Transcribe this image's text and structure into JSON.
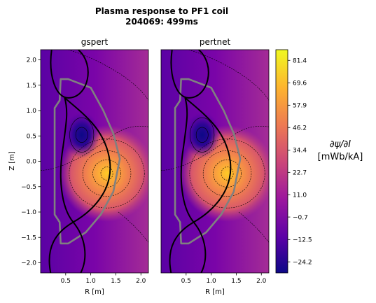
{
  "figure": {
    "title_line1": "Plasma response to PF1 coil",
    "title_line2": "204069: 499ms"
  },
  "chart_data": [
    {
      "type": "heatmap",
      "title": "gspert",
      "xlabel": "R [m]",
      "ylabel": "Z [m]",
      "xlim": [
        0.0,
        2.15
      ],
      "ylim": [
        -2.2,
        2.2
      ],
      "xticks": [
        "0.5",
        "1.0",
        "1.5",
        "2.0"
      ],
      "yticks": [
        "2.0",
        "1.5",
        "1.0",
        "0.5",
        "0.0",
        "−0.5",
        "−1.0",
        "−1.5",
        "−2.0"
      ],
      "extrema": [
        {
          "kind": "min",
          "R": 0.82,
          "Z": 0.52,
          "value": -24.2
        },
        {
          "kind": "max",
          "R": 1.32,
          "Z": -0.24,
          "value": 81.4
        }
      ]
    },
    {
      "type": "heatmap",
      "title": "pertnet",
      "xlabel": "R [m]",
      "ylabel": "",
      "xlim": [
        0.0,
        2.15
      ],
      "ylim": [
        -2.2,
        2.2
      ],
      "xticks": [
        "0.5",
        "1.0",
        "1.5",
        "2.0"
      ],
      "extrema": [
        {
          "kind": "min",
          "R": 0.82,
          "Z": 0.52,
          "value": -24.2
        },
        {
          "kind": "max",
          "R": 1.32,
          "Z": -0.24,
          "value": 81.4
        }
      ]
    }
  ],
  "colorbar": {
    "label_line1": "∂ψ/∂I",
    "label_line2": "[mWb/kA]",
    "range": [
      -30,
      87
    ],
    "ticks": [
      "81.4",
      "69.6",
      "57.9",
      "46.2",
      "34.4",
      "22.7",
      "11.0",
      "−0.7",
      "−12.5",
      "−24.2"
    ],
    "tick_values": [
      81.4,
      69.6,
      57.9,
      46.2,
      34.4,
      22.7,
      11.0,
      -0.7,
      -12.5,
      -24.2
    ],
    "colors": [
      "#0d0887",
      "#5c01a6",
      "#9c179e",
      "#cc4778",
      "#ed7953",
      "#fdb42f",
      "#f0f921"
    ]
  },
  "overlays": {
    "vessel_color": "#808080",
    "separatrix_color": "#000000"
  }
}
